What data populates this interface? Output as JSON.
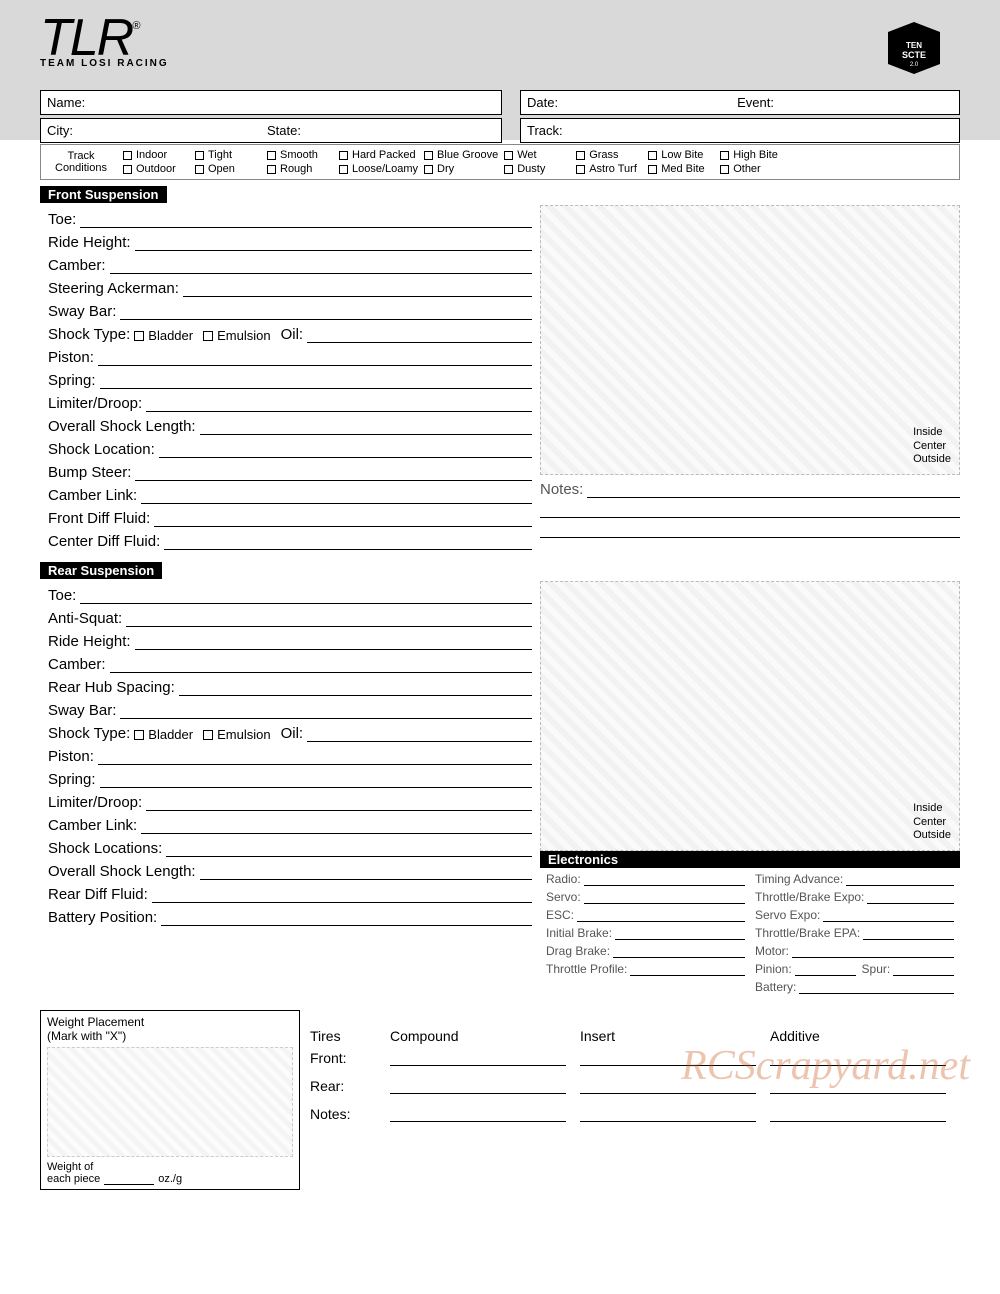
{
  "logo": {
    "main": "TLR",
    "sub": "TEAM LOSI RACING",
    "reg": "®"
  },
  "product_logo_alt": "TEN SCTE 2.0",
  "info": {
    "name_label": "Name:",
    "city_label": "City:",
    "state_label": "State:",
    "date_label": "Date:",
    "event_label": "Event:",
    "track_label": "Track:"
  },
  "track_conditions": {
    "label": "Track\nConditions",
    "cols": [
      [
        "Indoor",
        "Outdoor"
      ],
      [
        "Tight",
        "Open"
      ],
      [
        "Smooth",
        "Rough"
      ],
      [
        "Hard Packed",
        "Loose/Loamy"
      ],
      [
        "Blue Groove",
        "Dry"
      ],
      [
        "Wet",
        "Dusty"
      ],
      [
        "Grass",
        "Astro Turf"
      ],
      [
        "Low Bite",
        "Med Bite"
      ],
      [
        "High Bite",
        "Other"
      ]
    ]
  },
  "front": {
    "title": "Front Suspension",
    "fields": [
      "Toe:",
      "Ride Height:",
      "Camber:",
      "Steering Ackerman:",
      "Sway Bar:"
    ],
    "shock_type_label": "Shock Type:",
    "shock_opts": [
      "Bladder",
      "Emulsion"
    ],
    "oil_label": "Oil:",
    "fields2": [
      "Piston:",
      "Spring:",
      "Limiter/Droop:",
      "Overall Shock Length:",
      "Shock Location:",
      "Bump Steer:",
      "Camber Link:",
      "Front Diff Fluid:",
      "Center Diff Fluid:"
    ],
    "callouts": [
      "Inside",
      "Center",
      "Outside"
    ],
    "notes_label": "Notes:"
  },
  "rear": {
    "title": "Rear Suspension",
    "fields": [
      "Toe:",
      "Anti-Squat:",
      "Ride Height:",
      "Camber:",
      "Rear Hub Spacing:",
      "Sway Bar:"
    ],
    "shock_type_label": "Shock Type:",
    "shock_opts": [
      "Bladder",
      "Emulsion"
    ],
    "oil_label": "Oil:",
    "fields2": [
      "Piston:",
      "Spring:",
      "Limiter/Droop:",
      "Camber Link:",
      "Shock Locations:",
      "Overall Shock Length:",
      "Rear Diff Fluid:",
      "Battery Position:"
    ],
    "callouts": [
      "Inside",
      "Center",
      "Outside"
    ]
  },
  "electronics": {
    "title": "Electronics",
    "left": [
      "Radio:",
      "Servo:",
      "ESC:",
      "Initial Brake:",
      "Drag Brake:",
      "Throttle Profile:"
    ],
    "right_simple": [
      "Timing Advance:",
      "Throttle/Brake Expo:",
      "Servo Expo:",
      "Throttle/Brake EPA:",
      "Motor:"
    ],
    "pinion_label": "Pinion:",
    "spur_label": "Spur:",
    "battery_label": "Battery:"
  },
  "weight": {
    "title": "Weight Placement",
    "sub": "(Mark with \"X\")",
    "foot1": "Weight of",
    "foot2": "each piece",
    "unit": "oz./g"
  },
  "tires": {
    "head_label": "Tires",
    "cols": [
      "Compound",
      "Insert",
      "Additive"
    ],
    "rows": [
      "Front:",
      "Rear:",
      "Notes:"
    ]
  },
  "watermark": "RCScrapyard.net"
}
